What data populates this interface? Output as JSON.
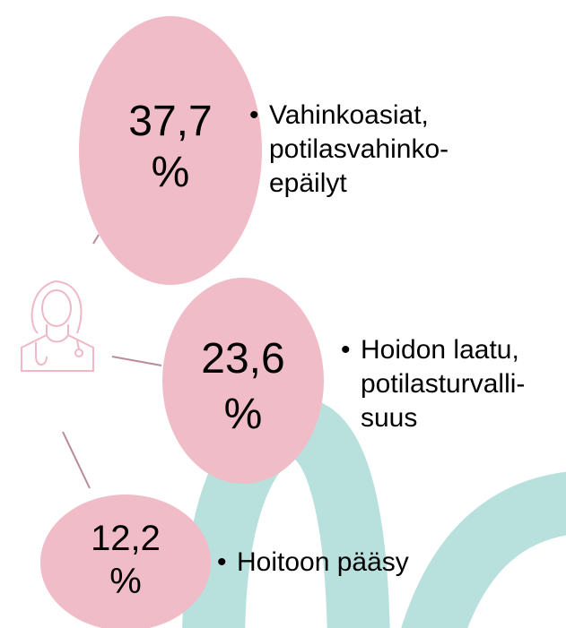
{
  "items": [
    {
      "value": "37,7",
      "unit": "%",
      "label": [
        "Vahinkoasiat,",
        "potilasvahinko-",
        "epäilyt"
      ]
    },
    {
      "value": "23,6",
      "unit": "%",
      "label": [
        "Hoidon laatu,",
        "potilasturvalli-",
        "suus"
      ]
    },
    {
      "value": "12,2",
      "unit": "%",
      "label": [
        "Hoitoon pääsy"
      ]
    }
  ]
}
